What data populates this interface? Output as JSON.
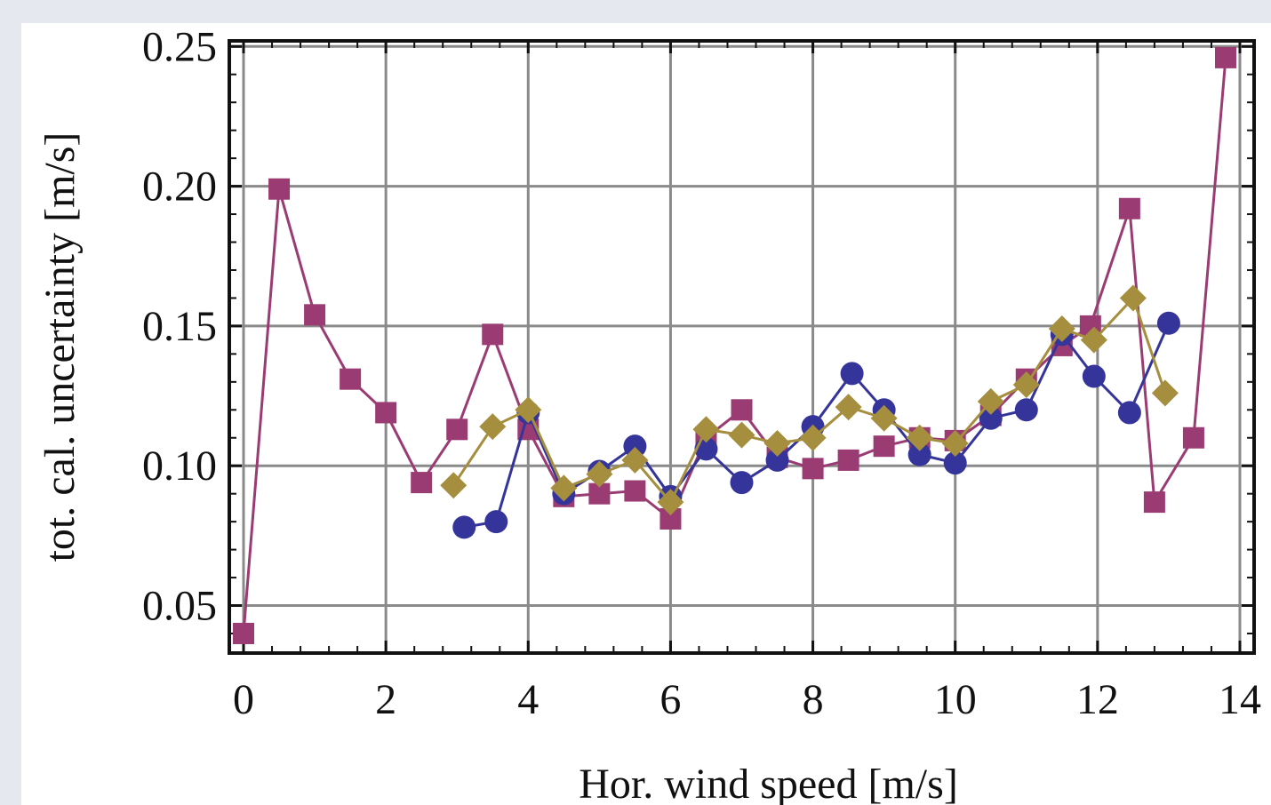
{
  "chart_data": {
    "type": "line",
    "title": "",
    "xlabel": "Hor. wind speed [m/s]",
    "ylabel": "tot. cal. uncertainty [m/s]",
    "xlim": [
      -0.2,
      14.2
    ],
    "ylim": [
      0.033,
      0.252
    ],
    "xticks": [
      0,
      2,
      4,
      6,
      8,
      10,
      12,
      14
    ],
    "xtick_labels": [
      "0",
      "2",
      "4",
      "6",
      "8",
      "10",
      "12",
      "14"
    ],
    "yticks": [
      0.05,
      0.1,
      0.15,
      0.2,
      0.25
    ],
    "ytick_labels": [
      "0.05",
      "0.10",
      "0.15",
      "0.20",
      "0.25"
    ],
    "grid": true,
    "legend": "none",
    "series": [
      {
        "color": "#9b3b73",
        "marker": "square",
        "points": [
          [
            0.0,
            0.04
          ],
          [
            0.5,
            0.199
          ],
          [
            1.0,
            0.154
          ],
          [
            1.5,
            0.131
          ],
          [
            2.0,
            0.119
          ],
          [
            2.5,
            0.094
          ],
          [
            3.0,
            0.113
          ],
          [
            3.5,
            0.147
          ],
          [
            4.0,
            0.113
          ],
          [
            4.5,
            0.089
          ],
          [
            5.0,
            0.09
          ],
          [
            5.5,
            0.091
          ],
          [
            6.0,
            0.081
          ],
          [
            6.5,
            0.11
          ],
          [
            7.0,
            0.12
          ],
          [
            7.5,
            0.103
          ],
          [
            8.0,
            0.099
          ],
          [
            8.5,
            0.102
          ],
          [
            9.0,
            0.107
          ],
          [
            9.5,
            0.11
          ],
          [
            10.0,
            0.109
          ],
          [
            10.5,
            0.118
          ],
          [
            11.0,
            0.131
          ],
          [
            11.5,
            0.143
          ],
          [
            11.9,
            0.15
          ],
          [
            12.45,
            0.192
          ],
          [
            12.8,
            0.087
          ],
          [
            13.35,
            0.11
          ],
          [
            13.8,
            0.246
          ]
        ]
      },
      {
        "color": "#34349a",
        "marker": "circle",
        "points": [
          [
            3.1,
            0.078
          ],
          [
            3.55,
            0.08
          ],
          [
            4.0,
            0.119
          ],
          [
            4.5,
            0.09
          ],
          [
            5.0,
            0.098
          ],
          [
            5.5,
            0.107
          ],
          [
            6.0,
            0.089
          ],
          [
            6.5,
            0.106
          ],
          [
            7.0,
            0.094
          ],
          [
            7.5,
            0.102
          ],
          [
            8.0,
            0.114
          ],
          [
            8.55,
            0.133
          ],
          [
            9.0,
            0.12
          ],
          [
            9.5,
            0.104
          ],
          [
            10.0,
            0.101
          ],
          [
            10.5,
            0.117
          ],
          [
            11.0,
            0.12
          ],
          [
            11.5,
            0.147
          ],
          [
            11.95,
            0.132
          ],
          [
            12.45,
            0.119
          ],
          [
            13.0,
            0.151
          ]
        ]
      },
      {
        "color": "#a58e3e",
        "marker": "diamond",
        "points": [
          [
            2.95,
            0.093
          ],
          [
            3.5,
            0.114
          ],
          [
            4.0,
            0.12
          ],
          [
            4.5,
            0.092
          ],
          [
            5.0,
            0.097
          ],
          [
            5.5,
            0.102
          ],
          [
            6.0,
            0.087
          ],
          [
            6.5,
            0.113
          ],
          [
            7.0,
            0.111
          ],
          [
            7.5,
            0.108
          ],
          [
            8.0,
            0.11
          ],
          [
            8.5,
            0.121
          ],
          [
            9.0,
            0.117
          ],
          [
            9.5,
            0.11
          ],
          [
            10.0,
            0.108
          ],
          [
            10.5,
            0.123
          ],
          [
            11.0,
            0.129
          ],
          [
            11.5,
            0.149
          ],
          [
            11.95,
            0.145
          ],
          [
            12.5,
            0.16
          ],
          [
            12.95,
            0.126
          ]
        ]
      }
    ]
  }
}
